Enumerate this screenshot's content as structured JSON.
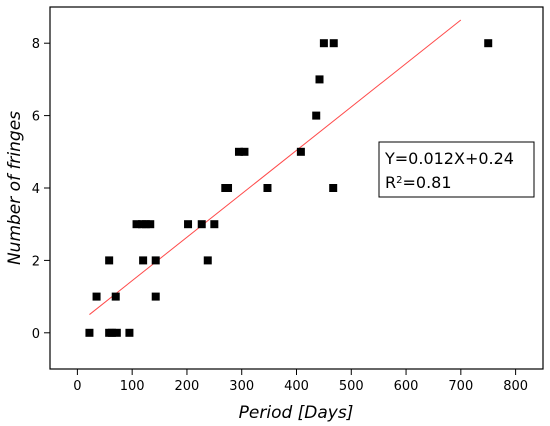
{
  "chart_data": {
    "type": "scatter",
    "title": "",
    "xlabel": "Period [Days]",
    "ylabel": "Number of fringes",
    "xlim": [
      -50,
      850
    ],
    "ylim": [
      -1,
      9
    ],
    "xticks": [
      0,
      100,
      200,
      300,
      400,
      500,
      600,
      700,
      800
    ],
    "yticks": [
      0,
      2,
      4,
      6,
      8
    ],
    "grid": false,
    "colors": {
      "points": "#000000",
      "fit": "#ff4a4a"
    },
    "points": [
      {
        "x": 22,
        "y": 0
      },
      {
        "x": 58,
        "y": 0
      },
      {
        "x": 63,
        "y": 0
      },
      {
        "x": 72,
        "y": 0
      },
      {
        "x": 95,
        "y": 0
      },
      {
        "x": 35,
        "y": 1
      },
      {
        "x": 70,
        "y": 1
      },
      {
        "x": 143,
        "y": 1
      },
      {
        "x": 58,
        "y": 2
      },
      {
        "x": 120,
        "y": 2
      },
      {
        "x": 143,
        "y": 2
      },
      {
        "x": 238,
        "y": 2
      },
      {
        "x": 108,
        "y": 3
      },
      {
        "x": 118,
        "y": 3
      },
      {
        "x": 125,
        "y": 3
      },
      {
        "x": 133,
        "y": 3
      },
      {
        "x": 202,
        "y": 3
      },
      {
        "x": 227,
        "y": 3
      },
      {
        "x": 250,
        "y": 3
      },
      {
        "x": 270,
        "y": 4
      },
      {
        "x": 275,
        "y": 4
      },
      {
        "x": 347,
        "y": 4
      },
      {
        "x": 467,
        "y": 4
      },
      {
        "x": 295,
        "y": 5
      },
      {
        "x": 305,
        "y": 5
      },
      {
        "x": 408,
        "y": 5
      },
      {
        "x": 436,
        "y": 6
      },
      {
        "x": 442,
        "y": 7
      },
      {
        "x": 450,
        "y": 8
      },
      {
        "x": 468,
        "y": 8
      },
      {
        "x": 750,
        "y": 8
      }
    ],
    "fit": {
      "slope": 0.012,
      "intercept": 0.24,
      "x_range": [
        22,
        700
      ]
    },
    "annotations": {
      "equation": "Y=0.012X+0.24",
      "r2_prefix": "R",
      "r2_sup": "2",
      "r2_value": "=0.81"
    }
  }
}
